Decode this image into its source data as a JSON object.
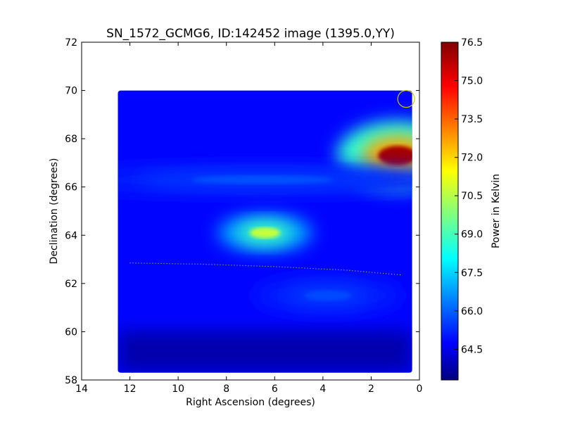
{
  "chart_data": {
    "type": "heatmap",
    "title": "SN_1572_GCMG6, ID:142452 image (1395.0,YY)",
    "xlabel": "Right Ascension (degrees)",
    "ylabel": "Declination (degrees)",
    "xlim": [
      14,
      0
    ],
    "ylim": [
      58,
      72
    ],
    "xticks": [
      "14",
      "12",
      "10",
      "8",
      "6",
      "4",
      "2",
      "0"
    ],
    "xtick_values": [
      14,
      12,
      10,
      8,
      6,
      4,
      2,
      0
    ],
    "yticks": [
      "58",
      "60",
      "62",
      "64",
      "66",
      "68",
      "70",
      "72"
    ],
    "ytick_values": [
      58,
      60,
      62,
      64,
      66,
      68,
      70,
      72
    ],
    "colorbar": {
      "label": "Power in Kelvin",
      "colormap": "jet",
      "range": [
        63.3,
        76.5
      ],
      "ticks": [
        "64.5",
        "66.0",
        "67.5",
        "69.0",
        "70.5",
        "72.0",
        "73.5",
        "75.0",
        "76.5"
      ],
      "tick_values": [
        64.5,
        66.0,
        67.5,
        69.0,
        70.5,
        72.0,
        73.5,
        75.0,
        76.5
      ]
    },
    "data_extent": {
      "ra": [
        12.5,
        0.3
      ],
      "dec": [
        58.3,
        70.0
      ]
    },
    "background_level": 65.0,
    "features": [
      {
        "name": "hot-spot",
        "ra": 0.9,
        "dec": 67.3,
        "peak": 76.0,
        "ra_width": 1.8,
        "dec_width": 0.9
      },
      {
        "name": "warm-spot",
        "ra": 6.4,
        "dec": 64.1,
        "peak": 70.8,
        "ra_width": 1.4,
        "dec_width": 0.5
      },
      {
        "name": "faint-band-66",
        "ra": 6.5,
        "dec": 66.3,
        "peak": 66.0,
        "ra_width": 6.5,
        "dec_width": 0.4
      },
      {
        "name": "faint-spot-61",
        "ra": 3.8,
        "dec": 61.5,
        "peak": 65.9,
        "ra_width": 2.2,
        "dec_width": 0.5
      }
    ],
    "track": {
      "color": "#c8c800",
      "points": [
        [
          12.0,
          62.85
        ],
        [
          9.0,
          62.8
        ],
        [
          6.0,
          62.7
        ],
        [
          3.0,
          62.55
        ],
        [
          0.7,
          62.35
        ]
      ]
    },
    "marker": {
      "color": "#c8c800",
      "ra": 0.55,
      "dec": 69.65
    }
  }
}
